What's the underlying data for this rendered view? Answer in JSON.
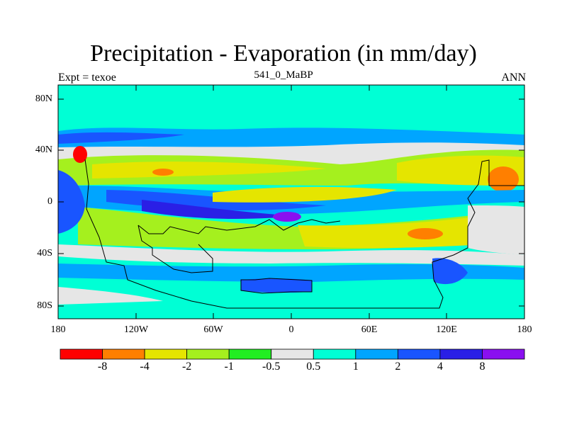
{
  "title": "Precipitation - Evaporation (in mm/day)",
  "subtitle_left": "Expt = texoe",
  "subtitle_center": "541_0_MaBP",
  "subtitle_right": "ANN",
  "y_ticks": [
    "80N",
    "40N",
    "0",
    "40S",
    "80S"
  ],
  "x_ticks": [
    "180",
    "120W",
    "60W",
    "0",
    "60E",
    "120E",
    "180"
  ],
  "colorbar": {
    "colors": [
      "#ff0000",
      "#ff7f00",
      "#e5e500",
      "#a5f01e",
      "#22ee22",
      "#e6e6e6",
      "#00ffd5",
      "#00a5ff",
      "#1955ff",
      "#2a1fe6",
      "#8a10f0"
    ],
    "tick_labels": [
      "-8",
      "-4",
      "-2",
      "-1",
      "-0.5",
      "0.5",
      "1",
      "2",
      "4",
      "8"
    ]
  },
  "legend_levels": {
    "red": "< -8",
    "orange": "-8 to -4",
    "yellow": "-4 to -2",
    "lime": "-2 to -1",
    "green": "-1 to -0.5",
    "gray": "-0.5 to 0.5",
    "cyan": "0.5 to 1",
    "sky": "1 to 2",
    "blue": "2 to 4",
    "deep_blue": "4 to 8",
    "purple": "> 8"
  }
}
